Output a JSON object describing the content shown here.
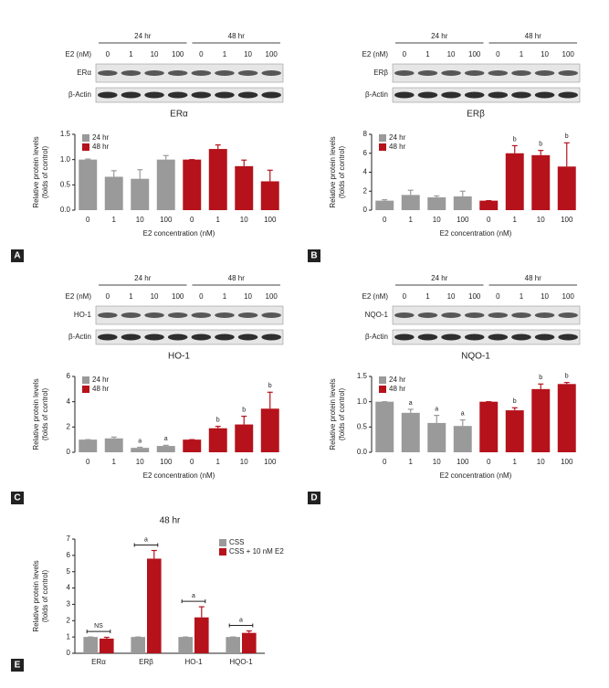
{
  "chart_data": [
    {
      "type": "bar",
      "panel": "A",
      "title": "ERα",
      "blot": {
        "time_labels": [
          "24 hr",
          "48 hr"
        ],
        "dose_label": "E2 (nM)",
        "lanes": [
          "0",
          "1",
          "10",
          "100",
          "0",
          "1",
          "10",
          "100"
        ],
        "proteins": [
          "ERα",
          "β-Actin"
        ]
      },
      "y_label": [
        "Relative protein levels",
        "(folds of control)"
      ],
      "x_label": "E2 concentration (nM)",
      "categories": [
        "0",
        "1",
        "10",
        "100"
      ],
      "series": [
        {
          "name": "24 hr",
          "color": "#9a9a9a",
          "values": [
            1.0,
            0.66,
            0.62,
            1.0
          ],
          "errors": [
            0.01,
            0.12,
            0.18,
            0.08
          ]
        },
        {
          "name": "48 hr",
          "color": "#b5121b",
          "values": [
            1.0,
            1.21,
            0.87,
            0.57
          ],
          "errors": [
            0,
            0.08,
            0.12,
            0.22
          ]
        }
      ],
      "ylim": [
        0,
        1.5
      ],
      "yticks": [
        {
          "value": 0,
          "label": "0.0"
        },
        {
          "value": 0.5,
          "label": "0.5"
        },
        {
          "value": 1,
          "label": "1.0"
        },
        {
          "value": 1.5,
          "label": "1.5"
        }
      ]
    },
    {
      "type": "bar",
      "panel": "B",
      "title": "ERβ",
      "blot": {
        "time_labels": [
          "24 hr",
          "48 hr"
        ],
        "dose_label": "E2 (nM)",
        "lanes": [
          "0",
          "1",
          "10",
          "100",
          "0",
          "1",
          "10",
          "100"
        ],
        "proteins": [
          "ERβ",
          "β-Actin"
        ]
      },
      "y_label": [
        "Relative protein levels",
        "(folds of control)"
      ],
      "x_label": "E2 concentration (nM)",
      "categories": [
        "0",
        "1",
        "10",
        "100"
      ],
      "series": [
        {
          "name": "24 hr",
          "color": "#9a9a9a",
          "values": [
            1.0,
            1.6,
            1.35,
            1.45
          ],
          "errors": [
            0.1,
            0.5,
            0.15,
            0.55
          ]
        },
        {
          "name": "48 hr",
          "color": "#b5121b",
          "values": [
            1.0,
            6.0,
            5.8,
            4.6
          ],
          "errors": [
            0,
            0.8,
            0.5,
            2.5
          ],
          "annotations": [
            null,
            "b",
            "b",
            "b"
          ]
        }
      ],
      "ylim": [
        0,
        8
      ],
      "yticks": [
        0,
        2,
        4,
        6,
        8
      ]
    },
    {
      "type": "bar",
      "panel": "C",
      "title": "HO-1",
      "blot": {
        "time_labels": [
          "24 hr",
          "48 hr"
        ],
        "dose_label": "E2 (nM)",
        "lanes": [
          "0",
          "1",
          "10",
          "100",
          "0",
          "1",
          "10",
          "100"
        ],
        "proteins": [
          "HO-1",
          "β-Actin"
        ]
      },
      "y_label": [
        "Relative protein levels",
        "(folds of control)"
      ],
      "x_label": "E2 concentration (nM)",
      "categories": [
        "0",
        "1",
        "10",
        "100"
      ],
      "series": [
        {
          "name": "24 hr",
          "color": "#9a9a9a",
          "values": [
            1.0,
            1.1,
            0.35,
            0.5
          ],
          "errors": [
            0,
            0.1,
            0.05,
            0.05
          ],
          "annotations": [
            null,
            null,
            "a",
            "a"
          ]
        },
        {
          "name": "48 hr",
          "color": "#b5121b",
          "values": [
            1.0,
            1.9,
            2.2,
            3.45
          ],
          "errors": [
            0,
            0.15,
            0.65,
            1.3
          ],
          "annotations": [
            null,
            "b",
            "b",
            "b"
          ]
        }
      ],
      "ylim": [
        0,
        6
      ],
      "yticks": [
        0,
        2,
        4,
        6
      ]
    },
    {
      "type": "bar",
      "panel": "D",
      "title": "NQO-1",
      "blot": {
        "time_labels": [
          "24 hr",
          "48 hr"
        ],
        "dose_label": "E2 (nM)",
        "lanes": [
          "0",
          "1",
          "10",
          "100",
          "0",
          "1",
          "10",
          "100"
        ],
        "proteins": [
          "NQO-1",
          "β-Actin"
        ]
      },
      "y_label": [
        "Relative protein levels",
        "(folds of control)"
      ],
      "x_label": "E2 concentration (nM)",
      "categories": [
        "0",
        "1",
        "10",
        "100"
      ],
      "series": [
        {
          "name": "24 hr",
          "color": "#9a9a9a",
          "values": [
            1.0,
            0.78,
            0.58,
            0.52
          ],
          "errors": [
            0,
            0.07,
            0.15,
            0.12
          ],
          "annotations": [
            null,
            "a",
            "a",
            "a"
          ]
        },
        {
          "name": "48 hr",
          "color": "#b5121b",
          "values": [
            1.0,
            0.83,
            1.25,
            1.35
          ],
          "errors": [
            0,
            0.05,
            0.1,
            0.03
          ],
          "annotations": [
            null,
            "b",
            "b",
            "b"
          ]
        }
      ],
      "ylim": [
        0,
        1.5
      ],
      "yticks": [
        {
          "value": 0,
          "label": "0.0"
        },
        {
          "value": 0.5,
          "label": "0.5"
        },
        {
          "value": 1,
          "label": "1.0"
        },
        {
          "value": 1.5,
          "label": "1.5"
        }
      ]
    },
    {
      "type": "grouped_bar",
      "panel": "E",
      "title": "48 hr",
      "y_label": [
        "Relative protein levels",
        "(folds of control)"
      ],
      "categories": [
        "ERα",
        "ERβ",
        "HO-1",
        "HQO-1"
      ],
      "series": [
        {
          "name": "CSS",
          "color": "#9a9a9a",
          "values": [
            1,
            1,
            1,
            1
          ],
          "errors": [
            0,
            0,
            0,
            0
          ]
        },
        {
          "name": "CSS + 10 nM E2",
          "color": "#b5121b",
          "values": [
            0.9,
            5.8,
            2.2,
            1.25
          ],
          "errors": [
            0.08,
            0.5,
            0.65,
            0.12
          ]
        }
      ],
      "brackets": [
        "NS",
        "a",
        "a",
        "a"
      ],
      "ylim": [
        0,
        7
      ],
      "yticks": [
        0,
        1,
        2,
        3,
        4,
        5,
        6,
        7
      ]
    }
  ]
}
